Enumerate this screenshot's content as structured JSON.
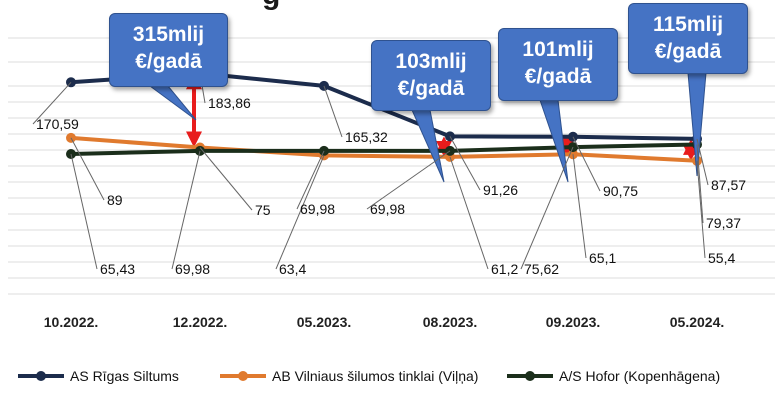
{
  "title_fragment": "g",
  "chart_data": {
    "type": "line",
    "categories": [
      "10.2022.",
      "12.2022.",
      "05.2023.",
      "08.2023.",
      "09.2023.",
      "05.2024."
    ],
    "series": [
      {
        "name": "AS Rīgas Siltums",
        "color": "#1c2c4c",
        "values": [
          170.59,
          183.86,
          165.32,
          91.26,
          90.75,
          87.57
        ],
        "labels": [
          "170,59",
          "183,86",
          "165,32",
          "91,26",
          "90,75",
          "87,57"
        ]
      },
      {
        "name": "AB Vilniaus šilumos tinklai (Viļņa)",
        "color": "#e07a2e",
        "values": [
          89,
          75,
          63.4,
          61.2,
          65.1,
          55.4
        ],
        "labels": [
          "89",
          "75",
          "63,4",
          "61,2",
          "65,1",
          "55,4"
        ]
      },
      {
        "name": "A/S Hofor (Kopenhāgena)",
        "color": "#1b2e1b",
        "values": [
          65.43,
          69.98,
          69.98,
          69.98,
          75.62,
          79.37
        ],
        "labels": [
          "65,43",
          "69,98",
          "69,98",
          "69,98",
          "75,62",
          "79,37"
        ]
      }
    ],
    "ylim": [
      40,
      200
    ],
    "grid": true,
    "legend": "bottom",
    "annotations": [
      {
        "line1": "315mlij",
        "line2": "€/gadā",
        "category": "12.2022."
      },
      {
        "line1": "103mlij",
        "line2": "€/gadā",
        "category": "08.2023."
      },
      {
        "line1": "101mlij",
        "line2": "€/gadā",
        "category": "09.2023."
      },
      {
        "line1": "115mlij",
        "line2": "€/gadā",
        "category": "05.2024."
      }
    ],
    "gap_arrow_color": "#e81c1c"
  }
}
